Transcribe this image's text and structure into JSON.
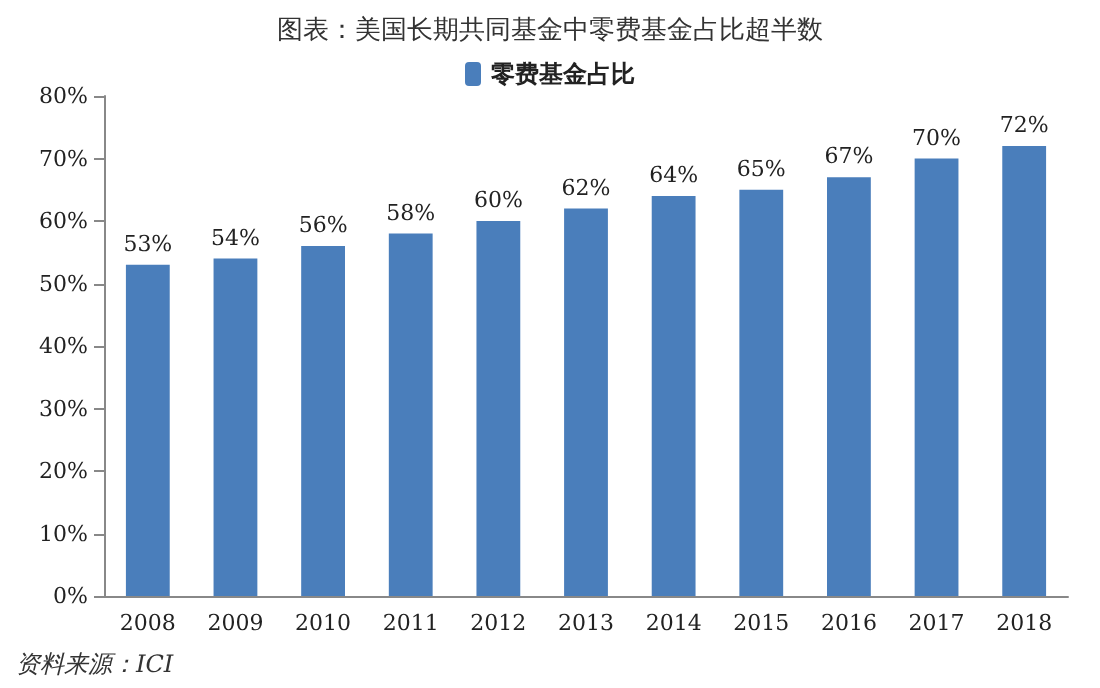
{
  "chart_data": {
    "type": "bar",
    "title": "图表：美国长期共同基金中零费基金占比超半数",
    "categories": [
      "2008",
      "2009",
      "2010",
      "2011",
      "2012",
      "2013",
      "2014",
      "2015",
      "2016",
      "2017",
      "2018"
    ],
    "series": [
      {
        "name": "零费基金占比",
        "color": "#4a7ebb",
        "values": [
          53,
          54,
          56,
          58,
          60,
          62,
          64,
          65,
          67,
          70,
          72
        ],
        "value_labels": [
          "53%",
          "54%",
          "56%",
          "58%",
          "60%",
          "62%",
          "64%",
          "65%",
          "67%",
          "70%",
          "72%"
        ]
      }
    ],
    "ylim": [
      0,
      80
    ],
    "yticks": [
      {
        "value": 0,
        "label": "0%"
      },
      {
        "value": 10,
        "label": "10%"
      },
      {
        "value": 20,
        "label": "20%"
      },
      {
        "value": 30,
        "label": "30%"
      },
      {
        "value": 40,
        "label": "40%"
      },
      {
        "value": 50,
        "label": "50%"
      },
      {
        "value": 60,
        "label": "60%"
      },
      {
        "value": 70,
        "label": "70%"
      },
      {
        "value": 80,
        "label": "80%"
      }
    ],
    "grid": false,
    "legend": "top",
    "annotations": [
      "资料来源：ICI"
    ]
  }
}
